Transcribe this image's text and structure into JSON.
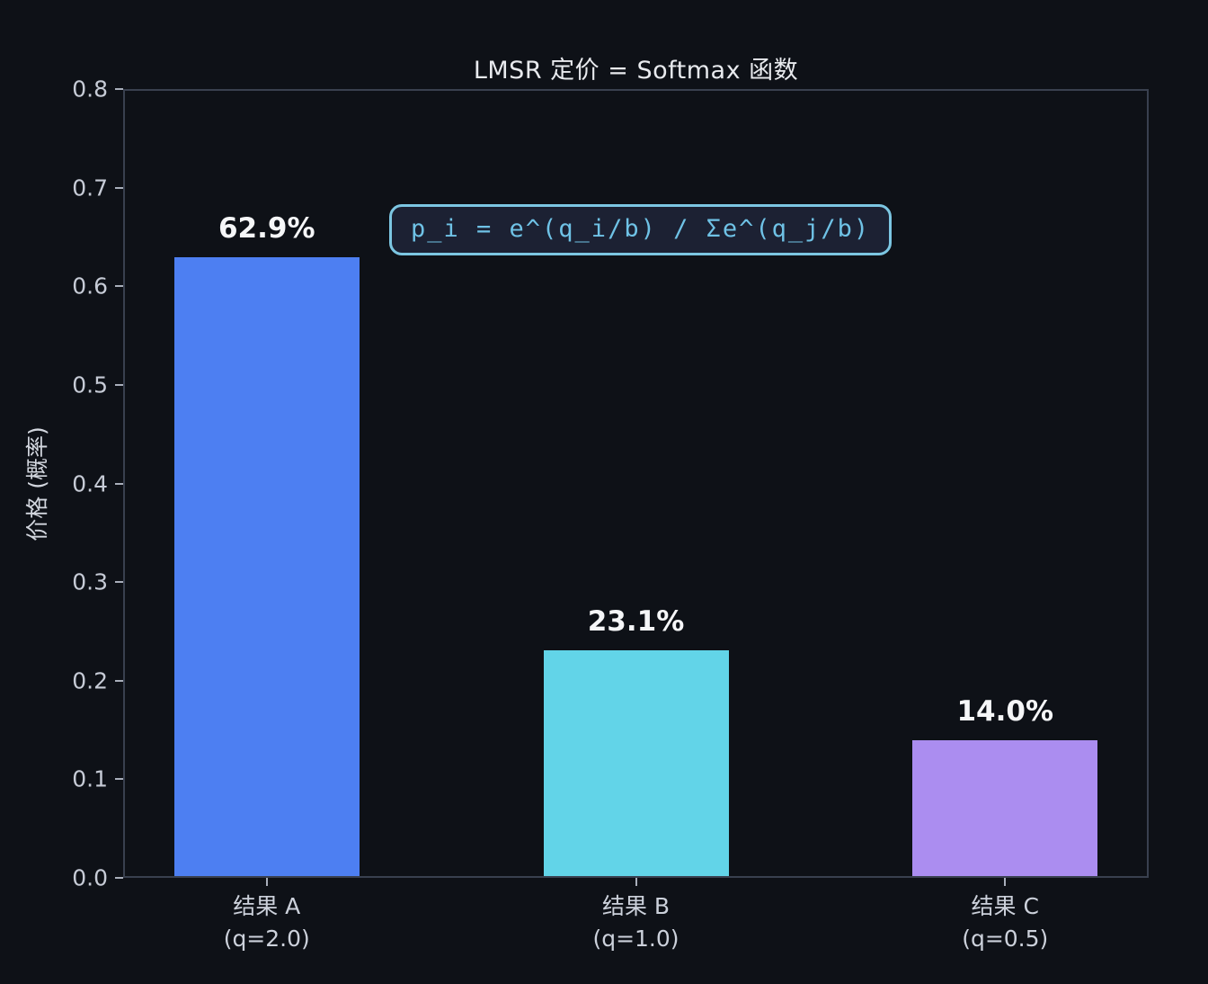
{
  "chart_data": {
    "type": "bar",
    "title": "LMSR 定价 = Softmax 函数",
    "xlabel": "",
    "ylabel": "价格 (概率)",
    "categories": [
      "结果 A",
      "结果 B",
      "结果 C"
    ],
    "category_sublabels": [
      "(q=2.0)",
      "(q=1.0)",
      "(q=0.5)"
    ],
    "values": [
      0.629,
      0.231,
      0.14
    ],
    "value_labels": [
      "62.9%",
      "23.1%",
      "14.0%"
    ],
    "bar_colors": [
      "#4d7ff2",
      "#62d4e8",
      "#ab8df0"
    ],
    "ylim": [
      0.0,
      0.8
    ],
    "yticks": [
      0.0,
      0.1,
      0.2,
      0.3,
      0.4,
      0.5,
      0.6,
      0.7,
      0.8
    ],
    "ytick_labels": [
      "0.0",
      "0.1",
      "0.2",
      "0.3",
      "0.4",
      "0.5",
      "0.6",
      "0.7",
      "0.8"
    ],
    "grid": false,
    "legend": null,
    "annotation": "p_i = e^(q_i/b) / Σe^(q_j/b)"
  },
  "colors": {
    "background": "#0e1117",
    "spine": "#39404f",
    "tick_text": "#c6cbd6",
    "title_text": "#e8eaee",
    "value_label_text": "#f5f6f8",
    "annotation_text": "#6fc2e6",
    "annotation_border": "#7cc6e2",
    "annotation_fill": "#1c2133"
  }
}
